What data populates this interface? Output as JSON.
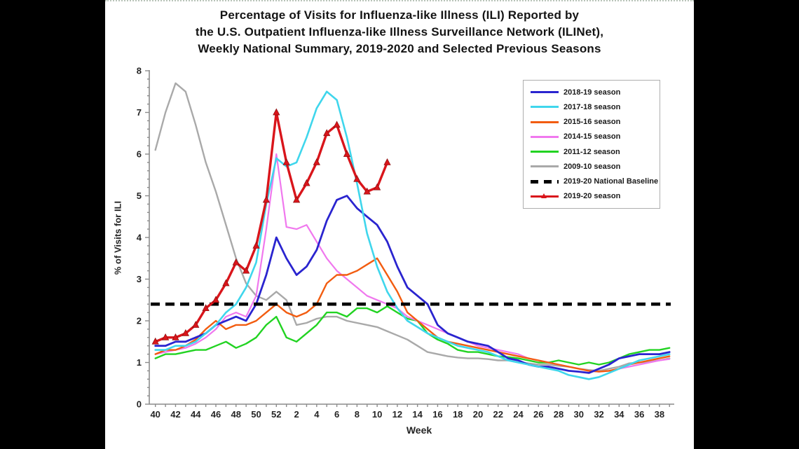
{
  "title": {
    "lines": [
      "Percentage of Visits for Influenza-like Illness (ILI) Reported by",
      "the U.S. Outpatient Influenza-like Illness Surveillance Network (ILINet),",
      "Weekly National Summary, 2019-2020 and Selected Previous Seasons"
    ]
  },
  "chart_data": {
    "type": "line",
    "title": "Percentage of Visits for Influenza-like Illness (ILI) Reported by the U.S. Outpatient Influenza-like Illness Surveillance Network (ILINet), Weekly National Summary, 2019-2020 and Selected Previous Seasons",
    "xlabel": "Week",
    "ylabel": "% of Visits for ILI",
    "ylim": [
      0,
      8
    ],
    "y_major_tick_step": 1,
    "y_minor_tick_step": 0.2,
    "x_label_every": 2,
    "grid": false,
    "legend_position": "upper right",
    "categories": [
      40,
      41,
      42,
      43,
      44,
      45,
      46,
      47,
      48,
      49,
      50,
      51,
      52,
      1,
      2,
      3,
      4,
      5,
      6,
      7,
      8,
      9,
      10,
      11,
      12,
      13,
      14,
      15,
      16,
      17,
      18,
      19,
      20,
      21,
      22,
      23,
      24,
      25,
      26,
      27,
      28,
      29,
      30,
      31,
      32,
      33,
      34,
      35,
      36,
      37,
      38,
      39
    ],
    "baseline": {
      "label": "2019-20 National Baseline",
      "value": 2.4,
      "color": "#000000",
      "style": "dashed"
    },
    "series": [
      {
        "name": "2009-10 season",
        "color": "#a9a9a9",
        "width": 2.4,
        "values": [
          6.1,
          7.0,
          7.7,
          7.5,
          6.7,
          5.8,
          5.1,
          4.3,
          3.5,
          2.9,
          2.6,
          2.5,
          2.7,
          2.5,
          1.9,
          1.95,
          2.05,
          2.1,
          2.1,
          2.0,
          1.95,
          1.9,
          1.85,
          1.75,
          1.65,
          1.55,
          1.4,
          1.25,
          1.2,
          1.15,
          1.12,
          1.1,
          1.1,
          1.08,
          1.05,
          1.05,
          1.0,
          0.98,
          0.95,
          0.95,
          0.92,
          0.9,
          0.85,
          0.82,
          0.8,
          0.85,
          0.9,
          0.98,
          1.0,
          1.02,
          1.05,
          1.1
        ]
      },
      {
        "name": "2011-12 season",
        "color": "#22d322",
        "width": 2.4,
        "values": [
          1.1,
          1.2,
          1.2,
          1.25,
          1.3,
          1.3,
          1.4,
          1.5,
          1.35,
          1.45,
          1.6,
          1.9,
          2.1,
          1.6,
          1.5,
          1.7,
          1.9,
          2.2,
          2.2,
          2.1,
          2.3,
          2.3,
          2.2,
          2.35,
          2.2,
          2.05,
          2.0,
          1.7,
          1.55,
          1.45,
          1.3,
          1.25,
          1.25,
          1.2,
          1.15,
          1.13,
          1.1,
          1.05,
          1.0,
          1.0,
          1.05,
          1.0,
          0.95,
          1.0,
          0.95,
          1.0,
          1.1,
          1.2,
          1.25,
          1.3,
          1.3,
          1.35
        ]
      },
      {
        "name": "2014-15 season",
        "color": "#f078ee",
        "width": 2.2,
        "values": [
          1.2,
          1.25,
          1.3,
          1.35,
          1.45,
          1.6,
          1.8,
          2.1,
          2.2,
          2.1,
          2.6,
          4.2,
          6.0,
          4.25,
          4.2,
          4.3,
          3.9,
          3.5,
          3.2,
          3.0,
          2.8,
          2.6,
          2.5,
          2.4,
          2.3,
          2.1,
          2.0,
          1.9,
          1.8,
          1.7,
          1.6,
          1.5,
          1.4,
          1.35,
          1.3,
          1.25,
          1.2,
          1.1,
          1.05,
          1.0,
          0.95,
          0.9,
          0.85,
          0.8,
          0.78,
          0.8,
          0.85,
          0.9,
          0.95,
          1.0,
          1.05,
          1.08
        ]
      },
      {
        "name": "2015-16 season",
        "color": "#f25c10",
        "width": 2.4,
        "values": [
          1.2,
          1.3,
          1.3,
          1.4,
          1.55,
          1.8,
          2.0,
          1.8,
          1.9,
          1.9,
          2.0,
          2.2,
          2.4,
          2.2,
          2.1,
          2.2,
          2.4,
          2.9,
          3.1,
          3.1,
          3.2,
          3.35,
          3.5,
          3.1,
          2.7,
          2.2,
          2.0,
          1.8,
          1.6,
          1.5,
          1.45,
          1.4,
          1.35,
          1.3,
          1.25,
          1.2,
          1.15,
          1.1,
          1.05,
          1.0,
          0.95,
          0.9,
          0.85,
          0.8,
          0.78,
          0.8,
          0.85,
          0.95,
          1.0,
          1.05,
          1.1,
          1.15
        ]
      },
      {
        "name": "2018-19 season",
        "color": "#2a24cf",
        "width": 2.8,
        "values": [
          1.4,
          1.4,
          1.5,
          1.5,
          1.6,
          1.7,
          1.9,
          2.0,
          2.1,
          2.0,
          2.4,
          3.1,
          4.0,
          3.5,
          3.1,
          3.3,
          3.7,
          4.4,
          4.9,
          5.0,
          4.7,
          4.5,
          4.3,
          3.9,
          3.3,
          2.8,
          2.6,
          2.4,
          1.9,
          1.7,
          1.6,
          1.5,
          1.45,
          1.4,
          1.25,
          1.1,
          1.05,
          0.95,
          0.9,
          0.9,
          0.85,
          0.8,
          0.78,
          0.75,
          0.85,
          0.95,
          1.1,
          1.15,
          1.2,
          1.2,
          1.2,
          1.25
        ]
      },
      {
        "name": "2017-18 season",
        "color": "#3fd6ec",
        "width": 2.6,
        "values": [
          1.3,
          1.3,
          1.4,
          1.4,
          1.5,
          1.7,
          1.9,
          2.2,
          2.4,
          2.8,
          3.4,
          4.8,
          5.9,
          5.7,
          5.8,
          6.4,
          7.1,
          7.5,
          7.3,
          6.4,
          5.3,
          4.1,
          3.3,
          2.7,
          2.3,
          2.0,
          1.85,
          1.7,
          1.6,
          1.5,
          1.4,
          1.35,
          1.3,
          1.25,
          1.15,
          1.05,
          1.0,
          0.95,
          0.9,
          0.85,
          0.8,
          0.7,
          0.65,
          0.6,
          0.65,
          0.75,
          0.85,
          0.95,
          1.05,
          1.1,
          1.15,
          1.2
        ]
      },
      {
        "name": "2019-20 season",
        "color": "#d9151b",
        "width": 3.4,
        "marker": "triangle",
        "values": [
          1.5,
          1.6,
          1.6,
          1.7,
          1.9,
          2.3,
          2.5,
          2.9,
          3.4,
          3.2,
          3.8,
          4.9,
          7.0,
          5.8,
          4.9,
          5.3,
          5.8,
          6.5,
          6.7,
          6.0,
          5.4,
          5.1,
          5.2,
          5.8
        ]
      }
    ],
    "legend": [
      {
        "label": "2018-19 season",
        "color": "#2a24cf",
        "style": "solid"
      },
      {
        "label": "2017-18 season",
        "color": "#3fd6ec",
        "style": "solid"
      },
      {
        "label": "2015-16 season",
        "color": "#f25c10",
        "style": "solid"
      },
      {
        "label": "2014-15 season",
        "color": "#f078ee",
        "style": "solid"
      },
      {
        "label": "2011-12 season",
        "color": "#22d322",
        "style": "solid"
      },
      {
        "label": "2009-10 season",
        "color": "#a9a9a9",
        "style": "solid"
      },
      {
        "label": "2019-20 National Baseline",
        "color": "#000000",
        "style": "dashed"
      },
      {
        "label": "2019-20 season",
        "color": "#d9151b",
        "style": "marker"
      }
    ]
  },
  "colors": {
    "page_background": "#000000",
    "canvas_background": "#ffffff",
    "axis": "#8c8c8c",
    "tick_text": "#242424"
  }
}
